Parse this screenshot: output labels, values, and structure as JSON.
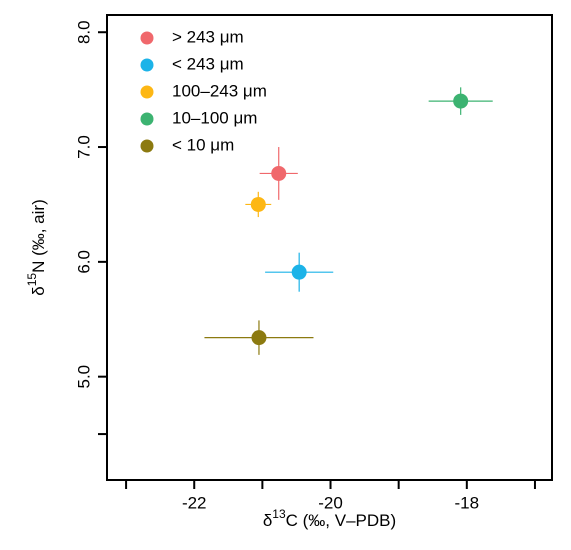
{
  "chart_data": {
    "type": "scatter",
    "xlabel": {
      "prefix": "δ",
      "sup": "13",
      "rest": "C (‰, V–PDB)"
    },
    "ylabel": {
      "prefix": "δ",
      "sup": "15",
      "rest": "N (‰, air)"
    },
    "xlim": [
      -23.28,
      -16.75
    ],
    "xticks": [
      -22,
      -20,
      -18
    ],
    "xminor_ticks": [
      -23,
      -21,
      -19,
      -17
    ],
    "ylim": [
      4.1,
      8.15
    ],
    "yticks": [
      {
        "value": 5,
        "label": "5.0"
      },
      {
        "value": 6,
        "label": "6.0"
      },
      {
        "value": 7,
        "label": "7.0"
      },
      {
        "value": 8,
        "label": "8.0"
      }
    ],
    "yminor_ticks": [
      4.5
    ],
    "legend": "top-left",
    "series": [
      {
        "name": "> 243 μm",
        "color": "#f0686c",
        "x": [
          -20.76
        ],
        "values": [
          6.77
        ],
        "xerr": [
          0.28
        ],
        "yerr": [
          0.23
        ]
      },
      {
        "name": "< 243 μm",
        "color": "#1cb3e8",
        "x": [
          -20.46
        ],
        "values": [
          5.91
        ],
        "xerr": [
          0.5
        ],
        "yerr": [
          0.17
        ]
      },
      {
        "name": "100–243 μm",
        "color": "#fdb714",
        "x": [
          -21.06
        ],
        "values": [
          6.5
        ],
        "xerr": [
          0.19
        ],
        "yerr": [
          0.11
        ]
      },
      {
        "name": "10–100 μm",
        "color": "#3cb371",
        "x": [
          -18.09
        ],
        "values": [
          7.4
        ],
        "xerr": [
          0.47
        ],
        "yerr": [
          0.12
        ]
      },
      {
        "name": "< 10 μm",
        "color": "#8c7a10",
        "x": [
          -21.05
        ],
        "values": [
          5.34
        ],
        "xerr": [
          0.8
        ],
        "yerr": [
          0.15
        ]
      }
    ]
  }
}
